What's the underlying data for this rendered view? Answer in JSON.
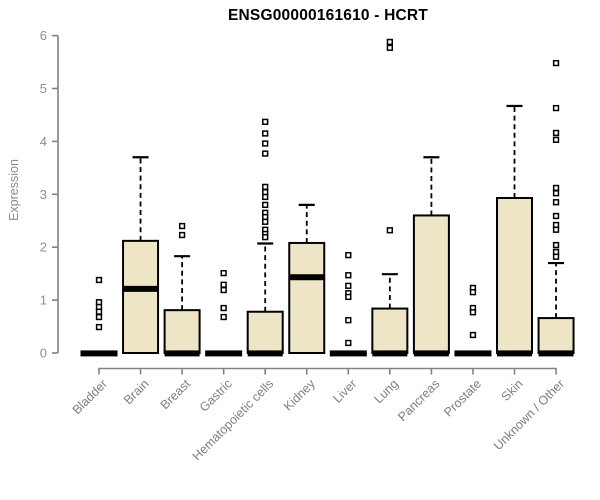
{
  "title": "ENSG00000161610 - HCRT",
  "colors": {
    "box_fill": "#ede5c6",
    "box_border": "#000000",
    "median": "#000000",
    "whisker": "#000000",
    "outlier_stroke": "#000000",
    "outlier_fill": "#ffffff",
    "axis": "#828282",
    "y_tick_label": "#8a8f98",
    "x_tick_label": "#7f7f7f",
    "title_color": "#000000"
  },
  "chart_data": {
    "type": "boxplot",
    "title": "ENSG00000161610 - HCRT",
    "xlabel": "",
    "ylabel": "Expression",
    "ylim": [
      0,
      6
    ],
    "yticks": [
      0,
      1,
      2,
      3,
      4,
      5,
      6
    ],
    "grid": false,
    "legend": "none",
    "categories": [
      "Bladder",
      "Brain",
      "Breast",
      "Gastric",
      "Hematopoietic cells",
      "Kidney",
      "Liver",
      "Lung",
      "Pancreas",
      "Prostate",
      "Skin",
      "Unknown / Other"
    ],
    "series": [
      {
        "label": "Bladder",
        "q1": 0,
        "median": 0,
        "q3": 0,
        "whisker_low": 0,
        "whisker_high": 0,
        "outliers": [
          1.38,
          0.96,
          0.87,
          0.78,
          0.68,
          0.49
        ]
      },
      {
        "label": "Brain",
        "q1": 0,
        "median": 1.22,
        "q3": 2.12,
        "whisker_low": 0,
        "whisker_high": 3.7,
        "outliers": []
      },
      {
        "label": "Breast",
        "q1": 0,
        "median": 0,
        "q3": 0.81,
        "whisker_low": 0,
        "whisker_high": 1.83,
        "outliers": [
          2.4,
          2.23
        ]
      },
      {
        "label": "Gastric",
        "q1": 0,
        "median": 0,
        "q3": 0,
        "whisker_low": 0,
        "whisker_high": 0,
        "outliers": [
          1.51,
          1.29,
          1.19,
          0.85,
          0.68
        ]
      },
      {
        "label": "Hematopoietic cells",
        "q1": 0,
        "median": 0,
        "q3": 0.78,
        "whisker_low": 0,
        "whisker_high": 2.07,
        "outliers": [
          4.37,
          4.15,
          3.96,
          3.77,
          3.14,
          3.04,
          2.95,
          2.8,
          2.65,
          2.57,
          2.48,
          2.33,
          2.25,
          2.19
        ]
      },
      {
        "label": "Kidney",
        "q1": 0,
        "median": 1.44,
        "q3": 2.08,
        "whisker_low": 0,
        "whisker_high": 2.8,
        "outliers": []
      },
      {
        "label": "Liver",
        "q1": 0,
        "median": 0,
        "q3": 0,
        "whisker_low": 0,
        "whisker_high": 0,
        "outliers": [
          1.85,
          1.47,
          1.27,
          1.13,
          1.06,
          0.62,
          0.19
        ]
      },
      {
        "label": "Lung",
        "q1": 0,
        "median": 0,
        "q3": 0.84,
        "whisker_low": 0,
        "whisker_high": 1.49,
        "outliers": [
          5.88,
          5.77,
          2.32
        ]
      },
      {
        "label": "Pancreas",
        "q1": 0,
        "median": 0,
        "q3": 2.6,
        "whisker_low": 0,
        "whisker_high": 3.7,
        "outliers": []
      },
      {
        "label": "Prostate",
        "q1": 0,
        "median": 0,
        "q3": 0,
        "whisker_low": 0,
        "whisker_high": 0,
        "outliers": [
          1.23,
          1.15,
          0.85,
          0.77,
          0.34
        ]
      },
      {
        "label": "Skin",
        "q1": 0,
        "median": 0,
        "q3": 2.93,
        "whisker_low": 0,
        "whisker_high": 4.67,
        "outliers": []
      },
      {
        "label": "Unknown / Other",
        "q1": 0,
        "median": 0,
        "q3": 0.66,
        "whisker_low": 0,
        "whisker_high": 1.7,
        "outliers": [
          5.48,
          4.63,
          4.16,
          4.03,
          3.12,
          3.02,
          2.85,
          2.59,
          2.42,
          2.33,
          2.04,
          1.91,
          1.82
        ]
      }
    ]
  }
}
